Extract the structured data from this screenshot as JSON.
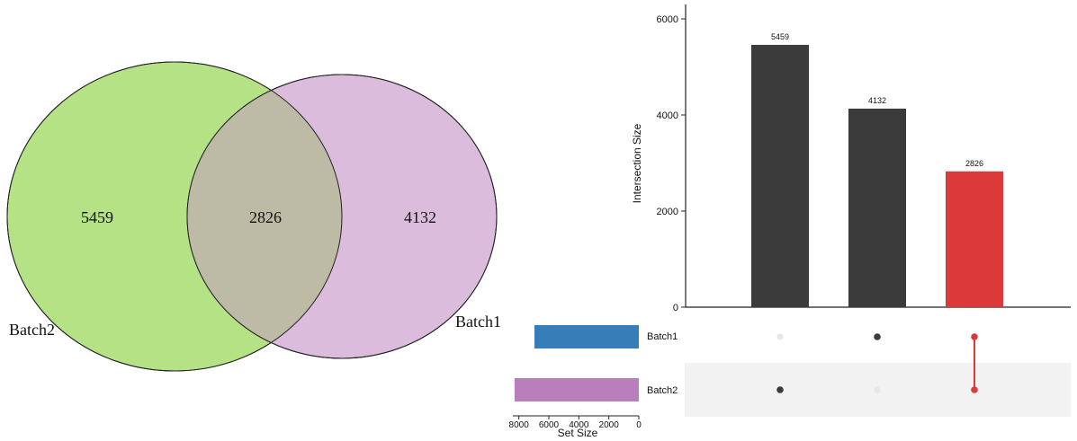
{
  "chart_data": [
    {
      "type": "venn",
      "sets": [
        {
          "name": "Batch2",
          "color": "#b5e285",
          "only": 5459
        },
        {
          "name": "Batch1",
          "color": "#dbbcdc",
          "only": 4132
        }
      ],
      "intersection": 2826,
      "overlap_color": "#bdbaa6"
    },
    {
      "type": "bar",
      "subtype": "upset",
      "ylabel": "Intersection Size",
      "ylim": [
        0,
        6000
      ],
      "yticks": [
        0,
        2000,
        4000,
        6000
      ],
      "intersections": [
        {
          "label": "5459",
          "value": 5459,
          "members": [
            "Batch2"
          ],
          "color": "#3b3b3b"
        },
        {
          "label": "4132",
          "value": 4132,
          "members": [
            "Batch1"
          ],
          "color": "#3b3b3b"
        },
        {
          "label": "2826",
          "value": 2826,
          "members": [
            "Batch1",
            "Batch2"
          ],
          "color": "#dc3a3a"
        }
      ],
      "sets": [
        {
          "name": "Batch1",
          "size": 6958,
          "color": "#377eb8"
        },
        {
          "name": "Batch2",
          "size": 8285,
          "color": "#b97fbd"
        }
      ],
      "set_size_label": "Set Size",
      "set_size_ticks": [
        8000,
        6000,
        4000,
        2000,
        0
      ],
      "set_size_max": 8400
    }
  ]
}
